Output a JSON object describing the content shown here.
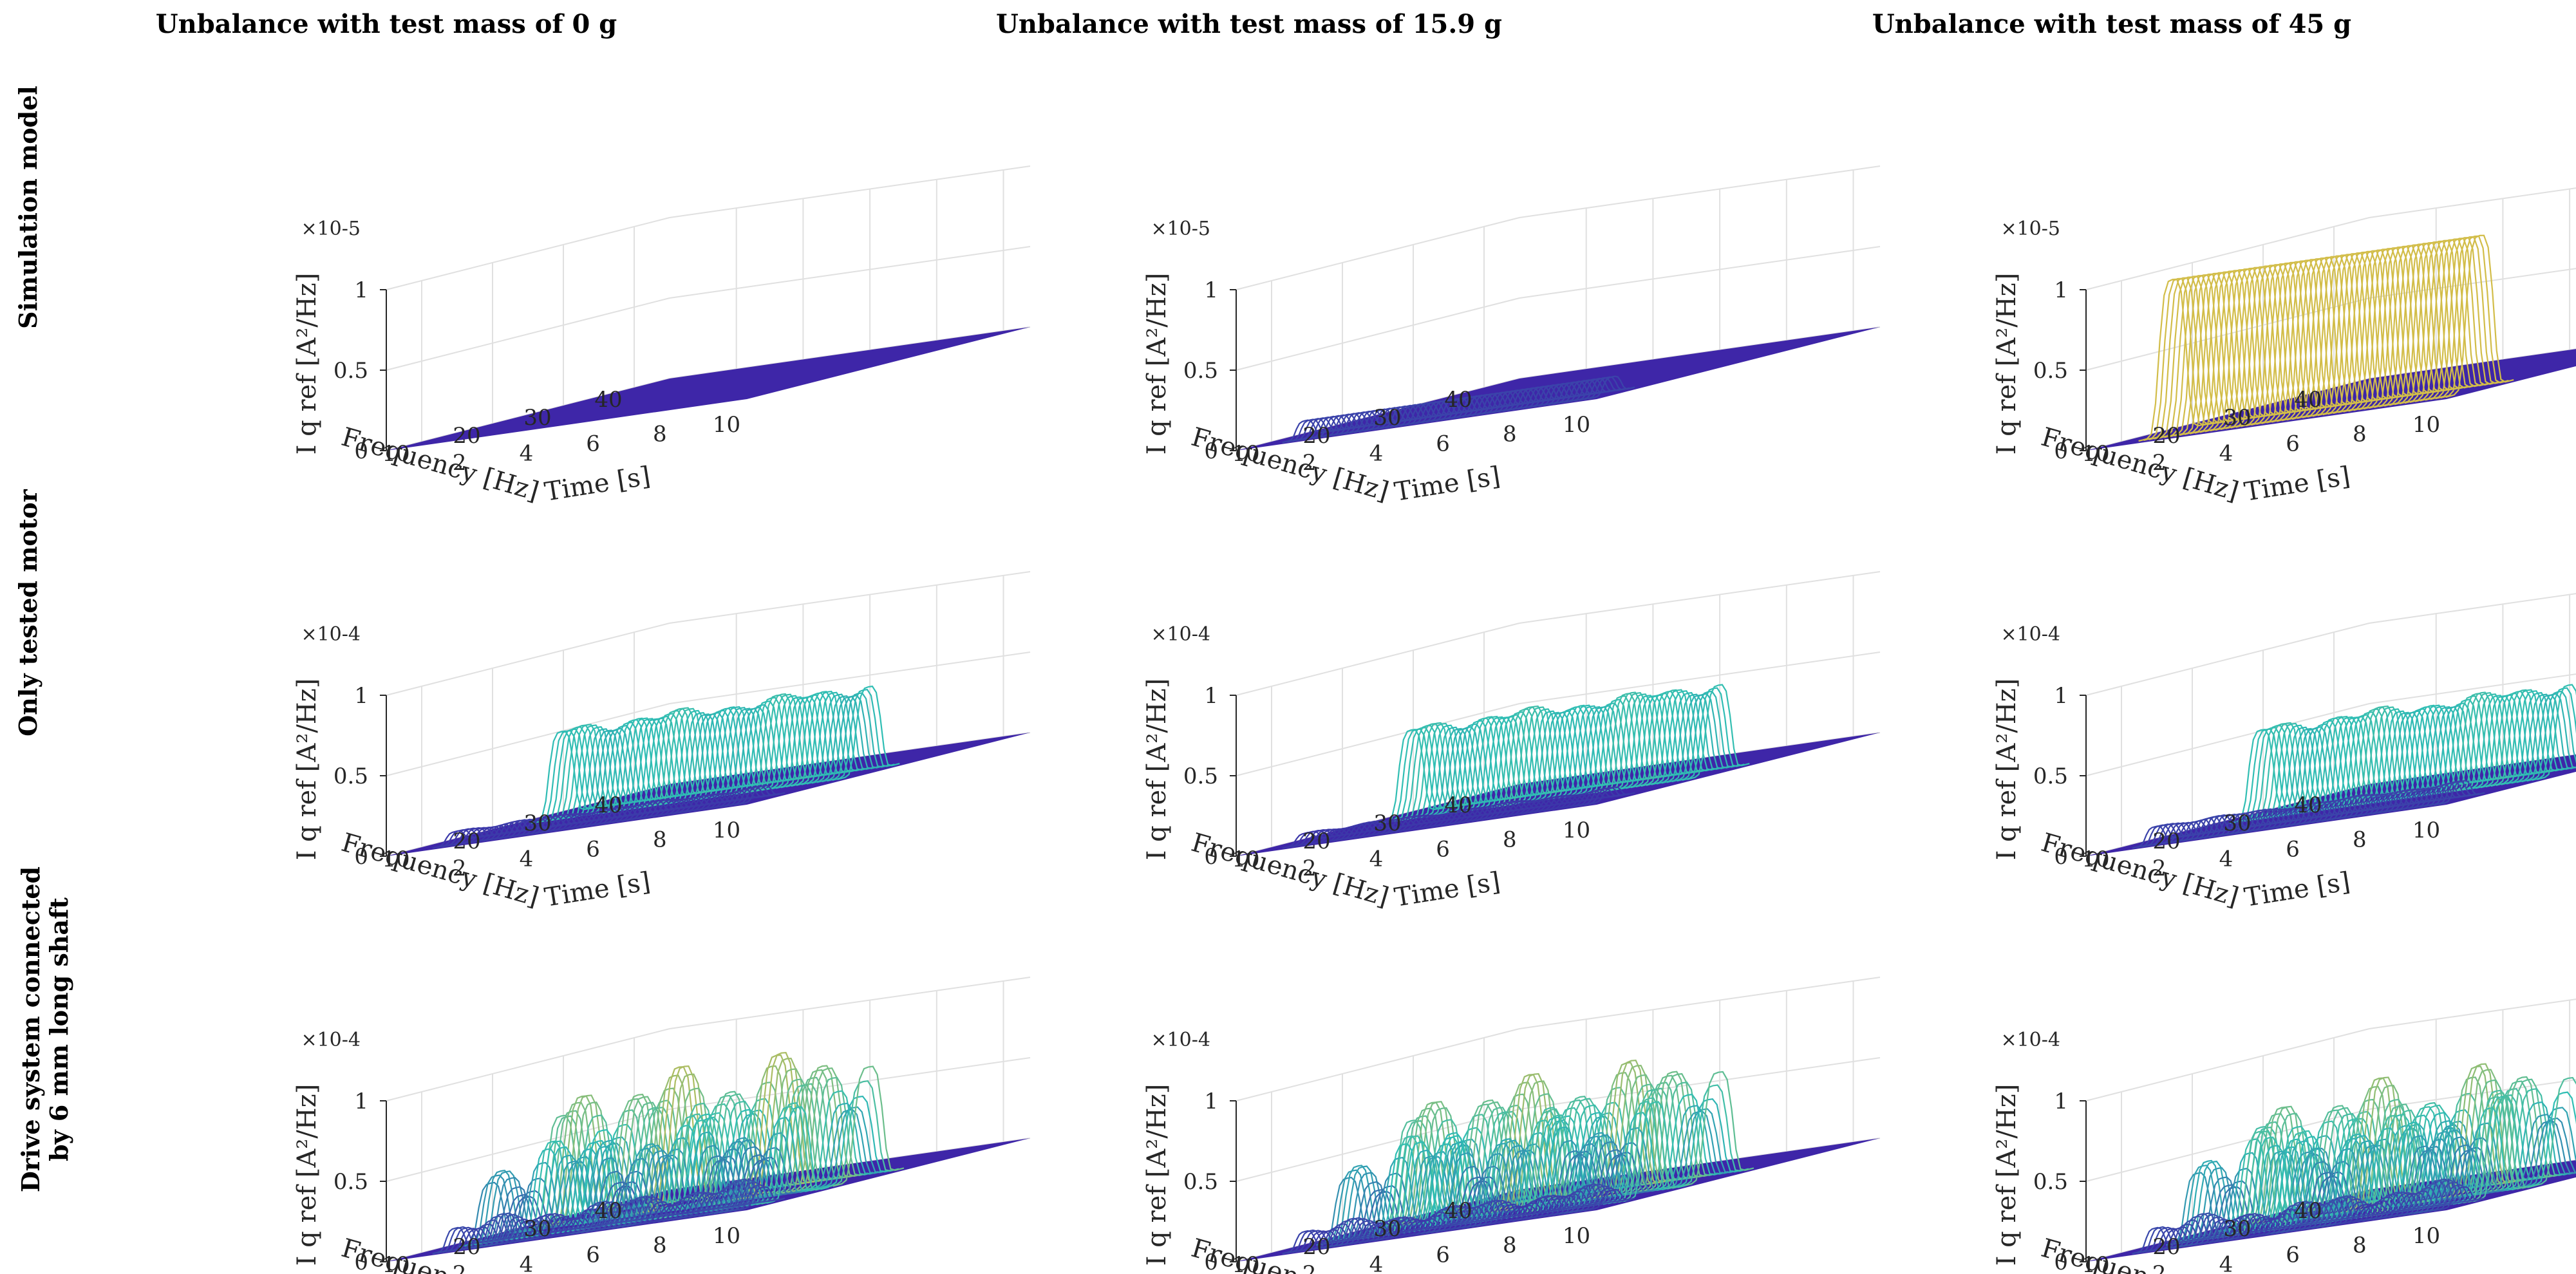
{
  "column_titles": [
    "Unbalance with test mass of 0 g",
    "Unbalance with test mass of 15.9 g",
    "Unbalance with test mass of 45 g"
  ],
  "row_labels": [
    "Simulation model",
    "Only tested motor",
    "Drive system connected by 6 mm long shaft"
  ],
  "colors": {
    "low": "#3e26a8",
    "mid": "#2fbeb4",
    "high": "#fabd2f",
    "axis": "#262626",
    "grid": "#e0e0e0"
  },
  "chart_data": [
    {
      "type": "surface",
      "row": 0,
      "col": 0,
      "zlabel": "I q ref [A²/Hz]",
      "xlabel": "Frequency [Hz]",
      "ylabel": "Time [s]",
      "z_multiplier": "×10^-5",
      "zlim": [
        0,
        1
      ],
      "zticks": [
        "0",
        "0.5",
        "1"
      ],
      "xticks": [
        "10",
        "20",
        "30",
        "40"
      ],
      "yticks": [
        "2",
        "4",
        "6",
        "8",
        "10"
      ],
      "peaks": []
    },
    {
      "type": "surface",
      "row": 0,
      "col": 1,
      "zlabel": "I q ref [A²/Hz]",
      "xlabel": "Frequency [Hz]",
      "ylabel": "Time [s]",
      "z_multiplier": "×10^-5",
      "zlim": [
        0,
        1
      ],
      "zticks": [
        "0",
        "0.5",
        "1"
      ],
      "xticks": [
        "10",
        "20",
        "30",
        "40"
      ],
      "yticks": [
        "2",
        "4",
        "6",
        "8",
        "10"
      ],
      "peaks": [
        {
          "freq": 10,
          "amp": 0.1,
          "wave": 0,
          "width": 1.6
        }
      ]
    },
    {
      "type": "surface",
      "row": 0,
      "col": 2,
      "zlabel": "I q ref [A²/Hz]",
      "xlabel": "Frequency [Hz]",
      "ylabel": "Time [s]",
      "z_multiplier": "×10^-5",
      "zlim": [
        0,
        1
      ],
      "zticks": [
        "0",
        "0.5",
        "1"
      ],
      "xticks": [
        "10",
        "20",
        "30",
        "40"
      ],
      "yticks": [
        "2",
        "4",
        "6",
        "8",
        "10"
      ],
      "peaks": [
        {
          "freq": 12.5,
          "amp": 0.95,
          "wave": 0,
          "width": 2.4
        }
      ]
    },
    {
      "type": "surface",
      "row": 1,
      "col": 0,
      "zlabel": "I q ref [A²/Hz]",
      "xlabel": "Frequency [Hz]",
      "ylabel": "Time [s]",
      "z_multiplier": "×10^-4",
      "zlim": [
        0,
        1
      ],
      "zticks": [
        "0",
        "0.5",
        "1"
      ],
      "xticks": [
        "10",
        "20",
        "30",
        "40"
      ],
      "yticks": [
        "2",
        "4",
        "6",
        "8",
        "10"
      ],
      "peaks": [
        {
          "freq": 25,
          "amp": 0.52,
          "wave": 0.04,
          "width": 2.2
        },
        {
          "freq": 10,
          "amp": 0.07,
          "wave": 0.01,
          "width": 1.6
        }
      ]
    },
    {
      "type": "surface",
      "row": 1,
      "col": 1,
      "zlabel": "I q ref [A²/Hz]",
      "xlabel": "Frequency [Hz]",
      "ylabel": "Time [s]",
      "z_multiplier": "×10^-4",
      "zlim": [
        0,
        1
      ],
      "zticks": [
        "0",
        "0.5",
        "1"
      ],
      "xticks": [
        "10",
        "20",
        "30",
        "40"
      ],
      "yticks": [
        "2",
        "4",
        "6",
        "8",
        "10"
      ],
      "peaks": [
        {
          "freq": 25,
          "amp": 0.53,
          "wave": 0.04,
          "width": 2.2
        },
        {
          "freq": 10,
          "amp": 0.06,
          "wave": 0.01,
          "width": 1.6
        }
      ]
    },
    {
      "type": "surface",
      "row": 1,
      "col": 2,
      "zlabel": "I q ref [A²/Hz]",
      "xlabel": "Frequency [Hz]",
      "ylabel": "Time [s]",
      "z_multiplier": "×10^-4",
      "zlim": [
        0,
        1
      ],
      "zticks": [
        "0",
        "0.5",
        "1"
      ],
      "xticks": [
        "10",
        "20",
        "30",
        "40"
      ],
      "yticks": [
        "2",
        "4",
        "6",
        "8",
        "10"
      ],
      "peaks": [
        {
          "freq": 25,
          "amp": 0.53,
          "wave": 0.04,
          "width": 2.2
        },
        {
          "freq": 10,
          "amp": 0.1,
          "wave": 0.01,
          "width": 1.6
        }
      ]
    },
    {
      "type": "surface",
      "row": 2,
      "col": 0,
      "zlabel": "I q ref [A²/Hz]",
      "xlabel": "Frequency [Hz]",
      "ylabel": "Time [s]",
      "z_multiplier": "×10^-4",
      "zlim": [
        0,
        1
      ],
      "zticks": [
        "0",
        "0.5",
        "1"
      ],
      "xticks": [
        "10",
        "20",
        "30",
        "40"
      ],
      "yticks": [
        "2",
        "4",
        "6",
        "8",
        "10"
      ],
      "peaks": [
        {
          "freq": 25,
          "amp": 0.65,
          "wave": 0.22,
          "width": 2.5
        },
        {
          "freq": 15,
          "amp": 0.4,
          "wave": 0.2,
          "width": 2.2
        },
        {
          "freq": 10,
          "amp": 0.12,
          "wave": 0.05,
          "width": 1.6
        }
      ]
    },
    {
      "type": "surface",
      "row": 2,
      "col": 1,
      "zlabel": "I q ref [A²/Hz]",
      "xlabel": "Frequency [Hz]",
      "ylabel": "Time [s]",
      "z_multiplier": "×10^-4",
      "zlim": [
        0,
        1
      ],
      "zticks": [
        "0",
        "0.5",
        "1"
      ],
      "xticks": [
        "10",
        "20",
        "30",
        "40"
      ],
      "yticks": [
        "2",
        "4",
        "6",
        "8",
        "10"
      ],
      "peaks": [
        {
          "freq": 25,
          "amp": 0.62,
          "wave": 0.2,
          "width": 2.5
        },
        {
          "freq": 16,
          "amp": 0.42,
          "wave": 0.2,
          "width": 2.2
        },
        {
          "freq": 10,
          "amp": 0.1,
          "wave": 0.04,
          "width": 1.6
        }
      ]
    },
    {
      "type": "surface",
      "row": 2,
      "col": 2,
      "zlabel": "I q ref [A²/Hz]",
      "xlabel": "Frequency [Hz]",
      "ylabel": "Time [s]",
      "z_multiplier": "×10^-4",
      "zlim": [
        0,
        1
      ],
      "zticks": [
        "0",
        "0.5",
        "1"
      ],
      "xticks": [
        "10",
        "20",
        "30",
        "40"
      ],
      "yticks": [
        "2",
        "4",
        "6",
        "8",
        "10"
      ],
      "peaks": [
        {
          "freq": 25,
          "amp": 0.58,
          "wave": 0.22,
          "width": 2.5
        },
        {
          "freq": 16,
          "amp": 0.45,
          "wave": 0.2,
          "width": 2.2
        },
        {
          "freq": 10,
          "amp": 0.12,
          "wave": 0.05,
          "width": 1.6
        }
      ]
    }
  ]
}
